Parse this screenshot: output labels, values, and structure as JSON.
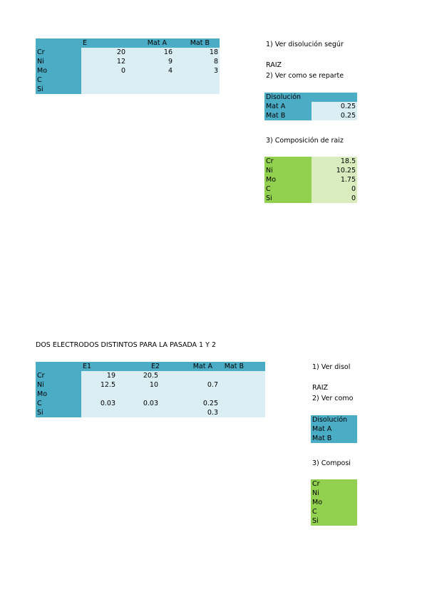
{
  "section1": {
    "table": {
      "headers": [
        "",
        "E",
        "Mat A",
        "Mat B"
      ],
      "rows": [
        {
          "label": "Cr",
          "e": "20",
          "mat_a": "16",
          "mat_b": "18"
        },
        {
          "label": "Ni",
          "e": "12",
          "mat_a": "9",
          "mat_b": "8"
        },
        {
          "label": "Mo",
          "e": "0",
          "mat_a": "4",
          "mat_b": "3"
        },
        {
          "label": "C",
          "e": "",
          "mat_a": "",
          "mat_b": ""
        },
        {
          "label": "Si",
          "e": "",
          "mat_a": "",
          "mat_b": ""
        }
      ]
    },
    "step1": "1) Ver disolución segúr",
    "raiz": "RAIZ",
    "step2": "2) Ver como se reparte",
    "dilution": {
      "title": "Disolución",
      "rows": [
        {
          "label": "Mat A",
          "value": "0.25"
        },
        {
          "label": "Mat B",
          "value": "0.25"
        }
      ]
    },
    "step3": "3) Composición de raiz",
    "composition": [
      {
        "label": "Cr",
        "value": "18.5"
      },
      {
        "label": "Ni",
        "value": "10.25"
      },
      {
        "label": "Mo",
        "value": "1.75"
      },
      {
        "label": "C",
        "value": "0"
      },
      {
        "label": "Si",
        "value": "0"
      }
    ]
  },
  "section2": {
    "title": "DOS ELECTRODOS DISTINTOS PARA LA PASADA 1 Y 2",
    "table": {
      "headers": [
        "",
        "E1",
        "E2",
        "Mat A",
        "Mat B"
      ],
      "rows": [
        {
          "label": "Cr",
          "e1": "19",
          "e2": "20.5",
          "mat_a": "",
          "mat_b": ""
        },
        {
          "label": "Ni",
          "e1": "12.5",
          "e2": "10",
          "mat_a": "0.7",
          "mat_b": ""
        },
        {
          "label": "Mo",
          "e1": "",
          "e2": "",
          "mat_a": "",
          "mat_b": ""
        },
        {
          "label": "C",
          "e1": "0.03",
          "e2": "0.03",
          "mat_a": "0.25",
          "mat_b": ""
        },
        {
          "label": "Si",
          "e1": "",
          "e2": "",
          "mat_a": "0.3",
          "mat_b": ""
        }
      ]
    },
    "step1": "1) Ver disol",
    "raiz": "RAIZ",
    "step2": "2) Ver como",
    "dilution": {
      "title": "Disolución",
      "rows": [
        {
          "label": "Mat A"
        },
        {
          "label": "Mat B"
        }
      ]
    },
    "step3": "3) Composi",
    "composition": [
      {
        "label": "Cr"
      },
      {
        "label": "Ni"
      },
      {
        "label": "Mo"
      },
      {
        "label": "C"
      },
      {
        "label": "Si"
      }
    ]
  }
}
